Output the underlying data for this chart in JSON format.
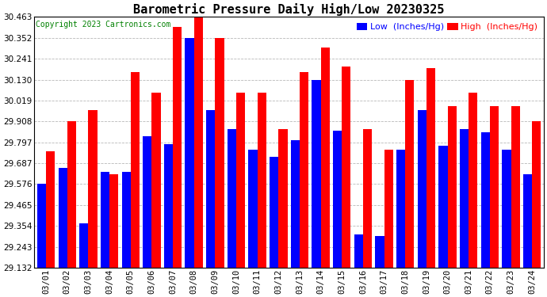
{
  "title": "Barometric Pressure Daily High/Low 20230325",
  "copyright": "Copyright 2023 Cartronics.com",
  "legend_low": "Low  (Inches/Hg)",
  "legend_high": "High  (Inches/Hg)",
  "dates": [
    "03/01",
    "03/02",
    "03/03",
    "03/04",
    "03/05",
    "03/06",
    "03/07",
    "03/08",
    "03/09",
    "03/10",
    "03/11",
    "03/12",
    "03/13",
    "03/14",
    "03/15",
    "03/16",
    "03/17",
    "03/18",
    "03/19",
    "03/20",
    "03/21",
    "03/22",
    "03/23",
    "03/24"
  ],
  "high_values": [
    29.75,
    29.91,
    29.97,
    29.63,
    30.17,
    30.06,
    30.41,
    30.46,
    30.35,
    30.06,
    30.06,
    29.87,
    30.17,
    30.3,
    30.2,
    29.87,
    29.76,
    30.13,
    30.19,
    29.99,
    30.06,
    29.99,
    29.99,
    29.91
  ],
  "low_values": [
    29.58,
    29.66,
    29.37,
    29.64,
    29.64,
    29.83,
    29.79,
    30.35,
    29.97,
    29.87,
    29.76,
    29.72,
    29.81,
    30.13,
    29.86,
    29.31,
    29.3,
    29.76,
    29.97,
    29.78,
    29.87,
    29.85,
    29.76,
    29.63
  ],
  "ylim_min": 29.132,
  "ylim_max": 30.463,
  "yticks": [
    29.132,
    29.243,
    29.354,
    29.465,
    29.576,
    29.687,
    29.797,
    29.908,
    30.019,
    30.13,
    30.241,
    30.352,
    30.463
  ],
  "bar_color_high": "#ff0000",
  "bar_color_low": "#0000ff",
  "background_color": "#ffffff",
  "grid_color": "#b0b0b0",
  "title_fontsize": 11,
  "tick_fontsize": 7.5,
  "legend_fontsize": 8,
  "copyright_fontsize": 7
}
